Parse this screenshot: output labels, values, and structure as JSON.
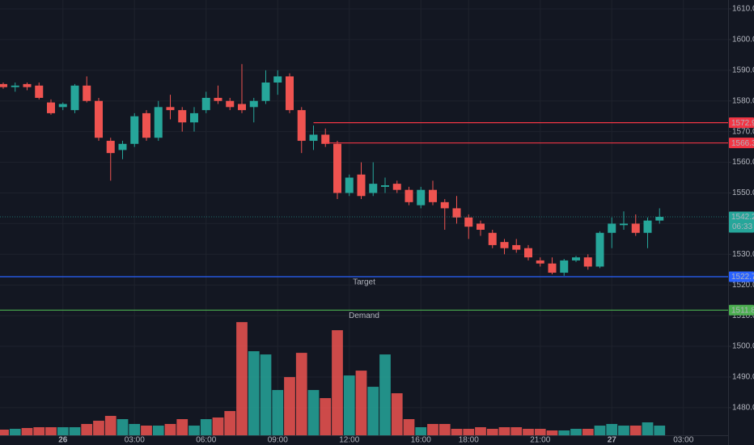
{
  "chart_data": {
    "type": "candlestick",
    "categories": [
      null,
      null,
      null,
      null,
      null,
      "26",
      null,
      null,
      null,
      null,
      null,
      "03:00",
      null,
      null,
      null,
      null,
      null,
      "06:00",
      null,
      null,
      null,
      null,
      null,
      "09:00",
      null,
      null,
      null,
      null,
      null,
      "12:00",
      null,
      null,
      null,
      null,
      null,
      "16:00",
      null,
      null,
      null,
      "18:00",
      null,
      null,
      null,
      null,
      null,
      "21:00",
      null,
      null,
      null,
      null,
      null,
      "27",
      null,
      null,
      null,
      null,
      null,
      "03:00"
    ],
    "open": [
      1585.5,
      1584.5,
      1585.5,
      1585,
      1579.5,
      1578,
      1577,
      1585,
      1580,
      1567,
      1564,
      1566,
      1576,
      1568,
      1578,
      1577,
      1573,
      1577,
      1581,
      1580,
      1579,
      1578,
      1580,
      1586,
      1588,
      1577,
      1567,
      1569,
      1566,
      1550,
      1556,
      1550,
      1552,
      1553,
      1551,
      1546,
      1551,
      1547,
      1545,
      1542,
      1540,
      1537,
      1534,
      1533,
      1532,
      1528,
      1527,
      1524,
      1528,
      1529,
      1526,
      1537,
      1539.5,
      1540,
      1537,
      1541,
      null,
      null
    ],
    "high": [
      1586,
      1586,
      1586,
      1586,
      1580.5,
      1579.5,
      1585.5,
      1588,
      1581,
      1568,
      1567,
      1576,
      1577,
      1580,
      1582,
      1578,
      1578,
      1583,
      1585,
      1581,
      1592,
      1581,
      1590,
      1590,
      1589,
      1578,
      1572,
      1571,
      1567,
      1556,
      1560,
      1560,
      1555,
      1554,
      1552,
      1552,
      1554,
      1548,
      1549,
      1543,
      1541,
      1538,
      1535,
      1535,
      1533,
      1529,
      1529,
      1528.5,
      1529.5,
      1530,
      1537.5,
      1542,
      1544,
      1543,
      1542,
      1545,
      null,
      null
    ],
    "low": [
      1584,
      1583,
      1583.5,
      1580.5,
      1575.5,
      1577,
      1576,
      1579.5,
      1567,
      1554,
      1561,
      1565,
      1567,
      1567,
      1574,
      1570,
      1570,
      1576,
      1579,
      1577,
      1576,
      1573,
      1579,
      1582,
      1576,
      1563,
      1564,
      1565,
      1548,
      1549,
      1548,
      1549,
      1550,
      1550,
      1546,
      1545,
      1546,
      1538,
      1540,
      1535,
      1536,
      1532,
      1530,
      1530.5,
      1528,
      1526,
      1523.5,
      1523,
      1527.5,
      1525,
      1525.5,
      1532,
      1538,
      1536,
      1532,
      1540,
      null,
      null
    ],
    "close": [
      1584.5,
      1585,
      1584.5,
      1581,
      1576,
      1579,
      1585,
      1580,
      1568,
      1563,
      1566,
      1575,
      1568,
      1578,
      1577,
      1573,
      1576,
      1581,
      1580,
      1578,
      1577,
      1580,
      1586,
      1588,
      1577,
      1567,
      1569,
      1566,
      1550,
      1555,
      1549,
      1553,
      1552.5,
      1551,
      1547,
      1551,
      1547,
      1545,
      1542,
      1539,
      1538,
      1533,
      1532,
      1531.5,
      1529,
      1527,
      1524,
      1528,
      1529,
      1526,
      1537,
      1540,
      1540,
      1537,
      1541,
      1542.2,
      null,
      null
    ],
    "volume": [
      7,
      8,
      9,
      10,
      10,
      10,
      10,
      14,
      18,
      24,
      20,
      14,
      12,
      12,
      14,
      20,
      12,
      20,
      22,
      30,
      140,
      104,
      100,
      56,
      72,
      102,
      56,
      46,
      130,
      74,
      80,
      60,
      100,
      52,
      20,
      10,
      14,
      14,
      8,
      8,
      10,
      8,
      10,
      10,
      8,
      8,
      6,
      6,
      8,
      8,
      12,
      14,
      12,
      12,
      16,
      12,
      null,
      null
    ],
    "up_color": "#26a69a",
    "down_color": "#ef5350",
    "ylim": [
      1471,
      1612.9
    ],
    "yticks": [
      {
        "value": 1480,
        "label": "1480.0"
      },
      {
        "value": 1490,
        "label": "1490.0"
      },
      {
        "value": 1500,
        "label": "1500.0"
      },
      {
        "value": 1510,
        "label": "1510.0"
      },
      {
        "value": 1520,
        "label": "1520.0"
      },
      {
        "value": 1530,
        "label": "1530.0"
      },
      {
        "value": 1540,
        "label": "1540.0"
      },
      {
        "value": 1550,
        "label": "1550.0"
      },
      {
        "value": 1560,
        "label": "1560.0"
      },
      {
        "value": 1570,
        "label": "1570.0"
      },
      {
        "value": 1580,
        "label": "1580.0"
      },
      {
        "value": 1590,
        "label": "1590.0"
      },
      {
        "value": 1600,
        "label": "1600.0"
      },
      {
        "value": 1610,
        "label": "1610.0"
      }
    ],
    "grid": true,
    "levels": [
      {
        "value": 1572.9,
        "color": "#f23645",
        "start": 26
      },
      {
        "value": 1566.3,
        "color": "#f23645",
        "start": 27
      },
      {
        "value": 1522.7,
        "color": "#2962ff",
        "name": "Target"
      },
      {
        "value": 1511.8,
        "color": "#4caf50",
        "name": "Demand"
      }
    ],
    "countdown": "06:33"
  }
}
